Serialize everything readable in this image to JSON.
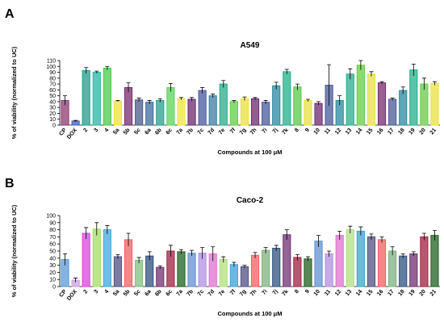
{
  "chart_data": [
    {
      "type": "bar",
      "panel": "A",
      "title": "A549",
      "ylabel": "% of viability (normalized to UC)",
      "xlabel": "Compounds at 100 μM",
      "categories": [
        "CP",
        "DOX",
        "2",
        "3",
        "4",
        "5a",
        "5b",
        "5c",
        "6a",
        "6b",
        "6c",
        "7a",
        "7b",
        "7c",
        "7d",
        "7e",
        "7f",
        "7g",
        "7h",
        "7i",
        "7j",
        "7k",
        "8",
        "9",
        "10",
        "11",
        "12",
        "13",
        "14",
        "15",
        "16",
        "17",
        "18",
        "19",
        "20",
        "21"
      ],
      "values": [
        42,
        7,
        93,
        90,
        97,
        41,
        64,
        43,
        39,
        42,
        64,
        45,
        44,
        59,
        50,
        70,
        40,
        45,
        45,
        39,
        67,
        91,
        65,
        42,
        37,
        68,
        42,
        87,
        102,
        87,
        72,
        44,
        59,
        94,
        70,
        71
      ],
      "errors": [
        8,
        1,
        5,
        2,
        3,
        1,
        8,
        3,
        3,
        3,
        7,
        2,
        3,
        5,
        3,
        6,
        2,
        3,
        2,
        3,
        6,
        4,
        5,
        2,
        3,
        35,
        8,
        9,
        8,
        4,
        2,
        2,
        6,
        10,
        10,
        3
      ],
      "colors": [
        "#8e3a72",
        "#3a62b5",
        "#1f9e89",
        "#2bb5a3",
        "#4bc94b",
        "#f2e03a",
        "#7a2a6e",
        "#4a5a8c",
        "#3c6e9e",
        "#26a08f",
        "#5ad45a",
        "#f0e640",
        "#6e2a6e",
        "#4a5aa0",
        "#3c7ea0",
        "#2aaa8a",
        "#66cc44",
        "#e8e040",
        "#6e2a6e",
        "#4a5a9a",
        "#2a8aa0",
        "#22b08a",
        "#5ac84a",
        "#e8e040",
        "#6e2a6e",
        "#4a5a9a",
        "#2a8aa0",
        "#22b08a",
        "#66cc44",
        "#e8e040",
        "#7a2a6e",
        "#4a5a9a",
        "#2a8aa0",
        "#22b08a",
        "#66cc44",
        "#e8e040"
      ],
      "ylim": [
        0,
        110
      ],
      "yticks": [
        0,
        10,
        20,
        30,
        40,
        50,
        60,
        70,
        80,
        90,
        100,
        110
      ]
    },
    {
      "type": "bar",
      "panel": "B",
      "title": "Caco-2",
      "ylabel": "% of viability (normalized to UC)",
      "xlabel": "Compounds at 100 μM",
      "categories": [
        "CP",
        "DOX",
        "2",
        "3",
        "4",
        "5a",
        "5b",
        "5c",
        "6a",
        "6b",
        "6c",
        "7a",
        "7b",
        "7c",
        "7d",
        "7e",
        "7f",
        "7g",
        "7h",
        "7i",
        "7j",
        "7k",
        "8",
        "9",
        "10",
        "11",
        "12",
        "13",
        "14",
        "15",
        "16",
        "17",
        "18",
        "19",
        "20",
        "21"
      ],
      "values": [
        38,
        9,
        75,
        81,
        80,
        42,
        66,
        37,
        43,
        27,
        50,
        49,
        47,
        47,
        46,
        38,
        31,
        28,
        44,
        51,
        54,
        73,
        41,
        39,
        64,
        46,
        72,
        80,
        78,
        70,
        66,
        50,
        43,
        46,
        70,
        72
      ],
      "errors": [
        8,
        3,
        8,
        9,
        6,
        3,
        9,
        4,
        6,
        2,
        8,
        3,
        4,
        8,
        10,
        4,
        3,
        2,
        4,
        4,
        4,
        7,
        4,
        3,
        8,
        4,
        6,
        5,
        6,
        4,
        4,
        6,
        3,
        3,
        5,
        7
      ],
      "colors": [
        "#5b9bd5",
        "#c9a0dc",
        "#e040e0",
        "#a0e060",
        "#40a8e0",
        "#505080",
        "#f06060",
        "#80c080",
        "#305080",
        "#703070",
        "#a02040",
        "#206020",
        "#6090d0",
        "#b090e0",
        "#e070d0",
        "#b0e080",
        "#40a0d0",
        "#505080",
        "#f06060",
        "#80b080",
        "#305080",
        "#703070",
        "#a02040",
        "#206020",
        "#6090d0",
        "#b090e0",
        "#e070d0",
        "#b0e080",
        "#40a0d0",
        "#505080",
        "#f06060",
        "#80b080",
        "#305080",
        "#703070",
        "#a02040",
        "#206020"
      ],
      "ylim": [
        0,
        100
      ],
      "yticks": [
        0,
        10,
        20,
        30,
        40,
        50,
        60,
        70,
        80,
        90,
        100
      ]
    }
  ]
}
